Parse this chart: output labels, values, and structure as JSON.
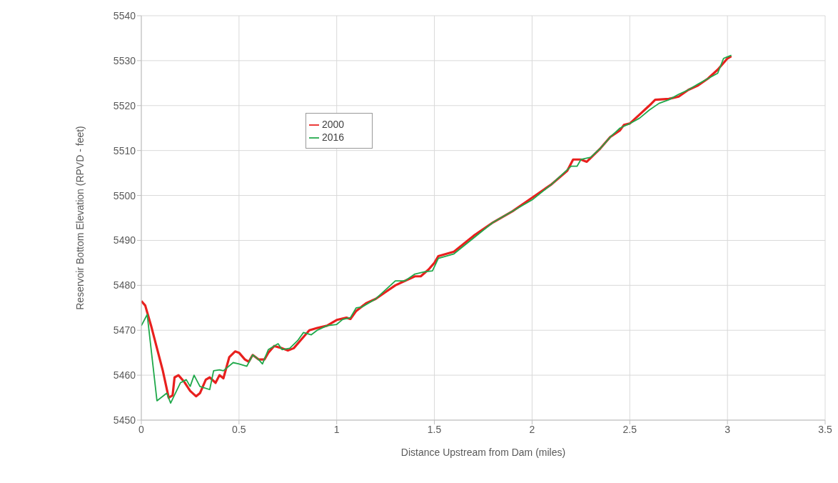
{
  "chart_data": {
    "type": "line",
    "xlabel": "Distance Upstream from Dam (miles)",
    "ylabel": "Reservoir Bottom Elevation (RPVD - feet)",
    "xlim": [
      0,
      3.5
    ],
    "xticks": [
      0,
      0.5,
      1,
      1.5,
      2,
      2.5,
      3,
      3.5
    ],
    "ylim": [
      5450,
      5540
    ],
    "yticks": [
      5450,
      5460,
      5470,
      5480,
      5490,
      5500,
      5510,
      5520,
      5530,
      5540
    ],
    "grid": true,
    "legend": "top left",
    "marker": "none",
    "line_style": "solid",
    "series": [
      {
        "name": "2000",
        "color": "#e8201e",
        "x": [
          0,
          0.02,
          0.05,
          0.08,
          0.11,
          0.14,
          0.16,
          0.17,
          0.19,
          0.22,
          0.25,
          0.28,
          0.3,
          0.33,
          0.35,
          0.38,
          0.4,
          0.42,
          0.45,
          0.48,
          0.5,
          0.53,
          0.55,
          0.57,
          0.6,
          0.63,
          0.65,
          0.68,
          0.72,
          0.75,
          0.78,
          0.82,
          0.86,
          0.9,
          0.95,
          1.0,
          1.05,
          1.07,
          1.1,
          1.15,
          1.2,
          1.25,
          1.3,
          1.35,
          1.4,
          1.43,
          1.47,
          1.5,
          1.52,
          1.6,
          1.7,
          1.8,
          1.9,
          2.0,
          2.1,
          2.18,
          2.21,
          2.25,
          2.28,
          2.35,
          2.4,
          2.45,
          2.47,
          2.5,
          2.55,
          2.6,
          2.63,
          2.7,
          2.75,
          2.8,
          2.85,
          2.9,
          2.95,
          3.0,
          3.02
        ],
        "values": [
          5476.5,
          5475.5,
          5471,
          5466,
          5461,
          5455,
          5455.5,
          5459.5,
          5460,
          5458.5,
          5456.5,
          5455.3,
          5456,
          5459,
          5459.5,
          5458.3,
          5460,
          5459.3,
          5464,
          5465.3,
          5465,
          5463.5,
          5463,
          5464.5,
          5463.5,
          5463.5,
          5465,
          5466.5,
          5466,
          5465.5,
          5466,
          5468,
          5470,
          5470.5,
          5471,
          5472.3,
          5472.8,
          5472.5,
          5474.3,
          5476,
          5477,
          5478.5,
          5480,
          5481,
          5482,
          5482,
          5483.5,
          5485,
          5486.5,
          5487.5,
          5491,
          5494,
          5496.5,
          5499.5,
          5502.5,
          5505.5,
          5508,
          5508,
          5507.5,
          5510.5,
          5513,
          5514.5,
          5515.7,
          5516,
          5518,
          5520,
          5521.3,
          5521.5,
          5522,
          5523.5,
          5524.5,
          5526,
          5528,
          5530.5,
          5531
        ]
      },
      {
        "name": "2016",
        "color": "#1fa84a",
        "x": [
          0,
          0.03,
          0.08,
          0.13,
          0.15,
          0.2,
          0.23,
          0.25,
          0.27,
          0.3,
          0.35,
          0.37,
          0.4,
          0.42,
          0.47,
          0.5,
          0.54,
          0.57,
          0.6,
          0.62,
          0.65,
          0.7,
          0.72,
          0.76,
          0.8,
          0.83,
          0.87,
          0.9,
          0.95,
          1.0,
          1.03,
          1.07,
          1.1,
          1.13,
          1.2,
          1.25,
          1.3,
          1.35,
          1.4,
          1.45,
          1.49,
          1.52,
          1.6,
          1.7,
          1.8,
          1.9,
          2.0,
          2.1,
          2.2,
          2.23,
          2.25,
          2.3,
          2.35,
          2.4,
          2.45,
          2.5,
          2.55,
          2.6,
          2.65,
          2.7,
          2.75,
          2.8,
          2.85,
          2.9,
          2.95,
          2.98,
          3.02
        ],
        "values": [
          5471,
          5473.5,
          5454.3,
          5456,
          5453.8,
          5458.3,
          5459,
          5457.5,
          5460,
          5457.5,
          5456.8,
          5461,
          5461.2,
          5461,
          5462.8,
          5462.5,
          5462,
          5464.5,
          5463.5,
          5462.5,
          5465.7,
          5467,
          5465.7,
          5466,
          5467.7,
          5469.5,
          5469,
          5470,
          5471,
          5471.3,
          5472.4,
          5472.8,
          5475,
          5475.2,
          5477,
          5479,
          5481,
          5481,
          5482.5,
          5483,
          5483.2,
          5486,
          5487,
          5490.5,
          5494,
          5496.5,
          5499,
          5502.5,
          5506.5,
          5506.5,
          5508,
          5508.5,
          5510.5,
          5513,
          5515,
          5516,
          5517.2,
          5519,
          5520.5,
          5521.3,
          5522.5,
          5523.5,
          5524.8,
          5526,
          5527.2,
          5530.5,
          5531.2
        ]
      }
    ]
  }
}
